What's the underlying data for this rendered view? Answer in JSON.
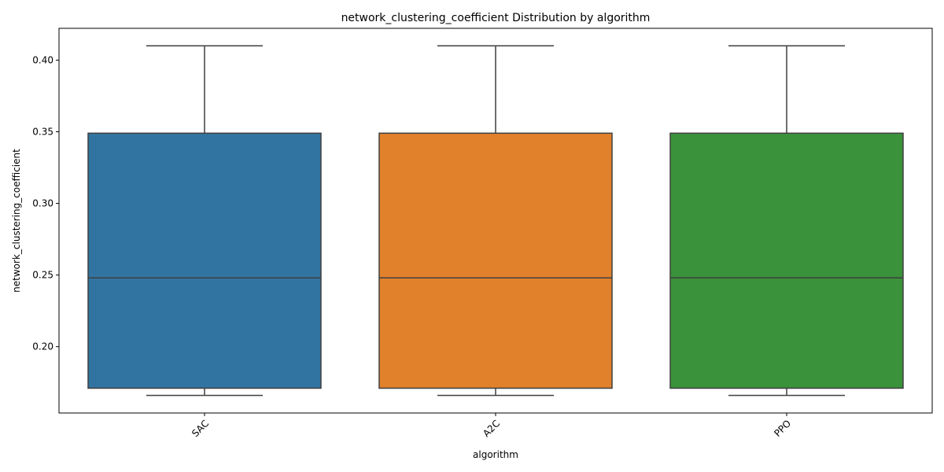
{
  "chart_data": {
    "type": "box",
    "title": "network_clustering_coefficient Distribution by algorithm",
    "xlabel": "algorithm",
    "ylabel": "network_clustering_coefficient",
    "categories": [
      "SAC",
      "A2C",
      "PPO"
    ],
    "colors": [
      "#3274a1",
      "#e1812c",
      "#3a923a"
    ],
    "boxes": [
      {
        "category": "SAC",
        "whisker_low": 0.166,
        "q1": 0.171,
        "median": 0.248,
        "q3": 0.349,
        "whisker_high": 0.41
      },
      {
        "category": "A2C",
        "whisker_low": 0.166,
        "q1": 0.171,
        "median": 0.248,
        "q3": 0.349,
        "whisker_high": 0.41
      },
      {
        "category": "PPO",
        "whisker_low": 0.166,
        "q1": 0.171,
        "median": 0.248,
        "q3": 0.349,
        "whisker_high": 0.41
      }
    ],
    "y_ticks": [
      0.2,
      0.25,
      0.3,
      0.35,
      0.4
    ],
    "y_tick_labels": [
      "0.20",
      "0.25",
      "0.30",
      "0.35",
      "0.40"
    ],
    "ylim": [
      0.1537,
      0.4222
    ],
    "x_tick_rotation": 45,
    "grid": false,
    "legend": "none"
  }
}
